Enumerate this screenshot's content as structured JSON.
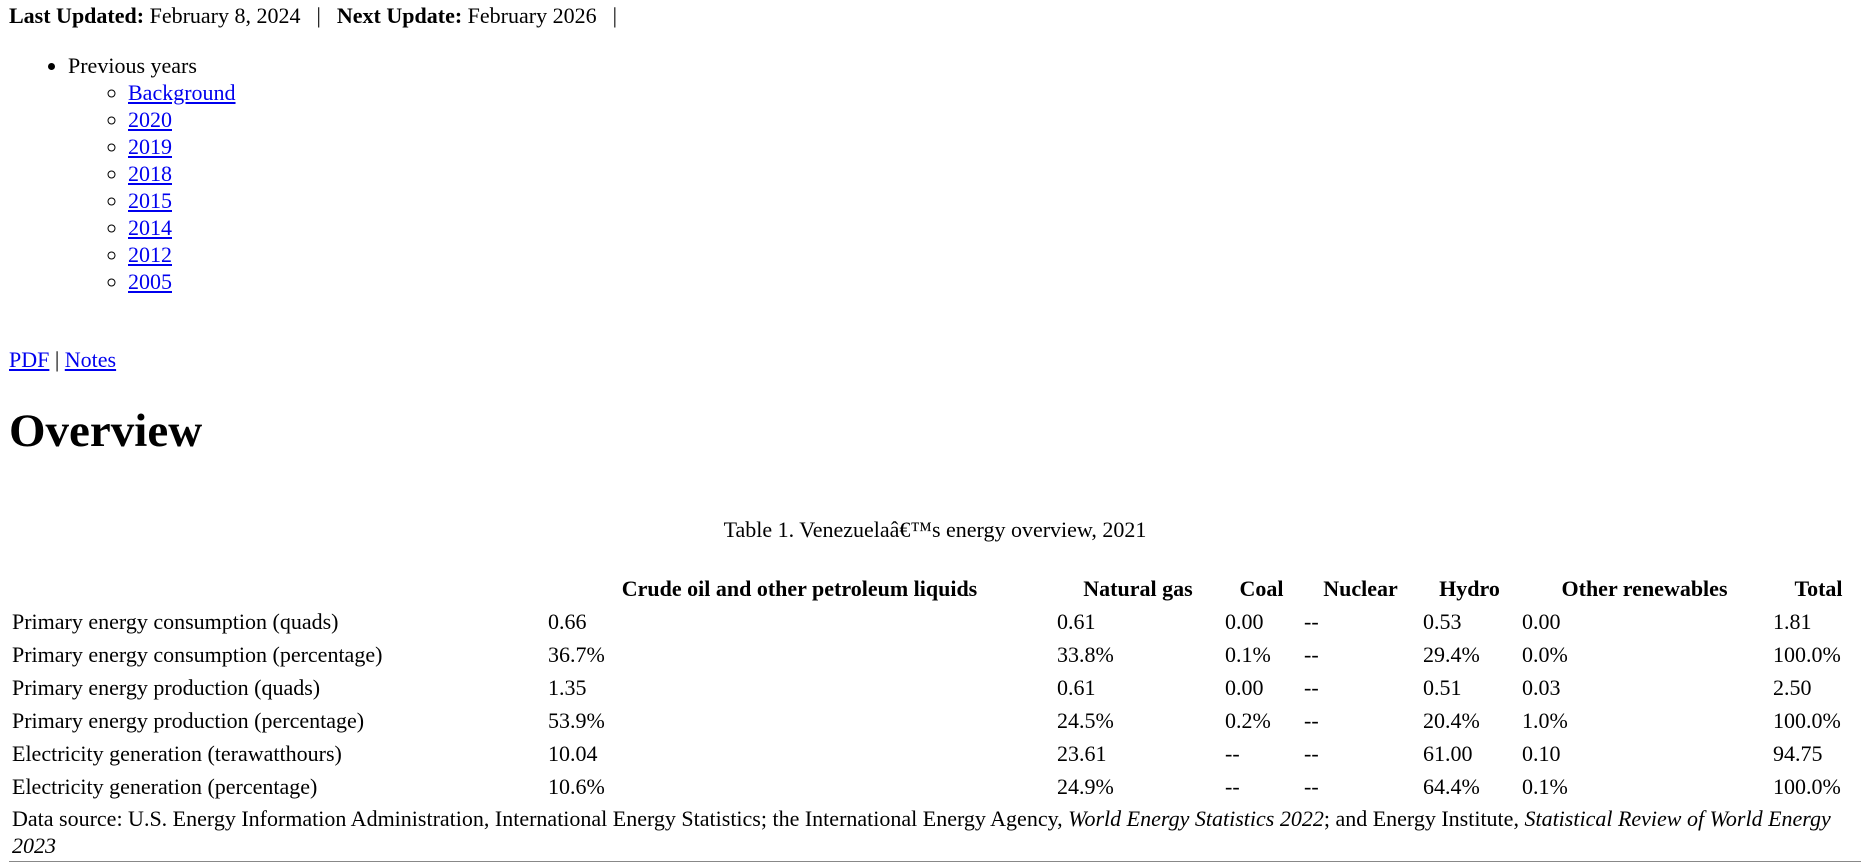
{
  "header": {
    "items": [
      {
        "label": "Last Updated:",
        "value": "February 8, 2024"
      },
      {
        "label": "Next Update:",
        "value": "February 2026"
      }
    ],
    "separator": "|"
  },
  "nav": {
    "title": "Previous years",
    "links": [
      "Background",
      "2020",
      "2019",
      "2018",
      "2015",
      "2014",
      "2012",
      "2005"
    ]
  },
  "doc_links": {
    "items": [
      "PDF",
      "Notes"
    ],
    "separator": "|"
  },
  "heading": "Overview",
  "table": {
    "caption": "Table 1. Venezuelaâ€™s energy overview, 2021",
    "columns": [
      "Crude oil and other petroleum liquids",
      "Natural gas",
      "Coal",
      "Nuclear",
      "Hydro",
      "Other renewables",
      "Total"
    ],
    "rows": [
      [
        "Primary energy consumption (quads)",
        "0.66",
        "0.61",
        "0.00",
        "--",
        "0.53",
        "0.00",
        "1.81"
      ],
      [
        "Primary energy consumption (percentage)",
        "36.7%",
        "33.8%",
        "0.1%",
        "--",
        "29.4%",
        "0.0%",
        "100.0%"
      ],
      [
        "Primary energy production (quads)",
        "1.35",
        "0.61",
        "0.00",
        "--",
        "0.51",
        "0.03",
        "2.50"
      ],
      [
        "Primary energy production (percentage)",
        "53.9%",
        "24.5%",
        "0.2%",
        "--",
        "20.4%",
        "1.0%",
        "100.0%"
      ],
      [
        "Electricity generation (terawatthours)",
        "10.04",
        "23.61",
        "--",
        "--",
        "61.00",
        "0.10",
        "94.75"
      ],
      [
        "Electricity generation (percentage)",
        "10.6%",
        "24.9%",
        "--",
        "--",
        "64.4%",
        "0.1%",
        "100.0%"
      ]
    ]
  },
  "source": {
    "prefix": "Data source: U.S. Energy Information Administration, International Energy Statistics; the International Energy Agency, ",
    "title_1": "World Energy Statistics 2022",
    "middle": "; and Energy Institute, ",
    "title_2": "Statistical Review of World Energy 2023"
  }
}
